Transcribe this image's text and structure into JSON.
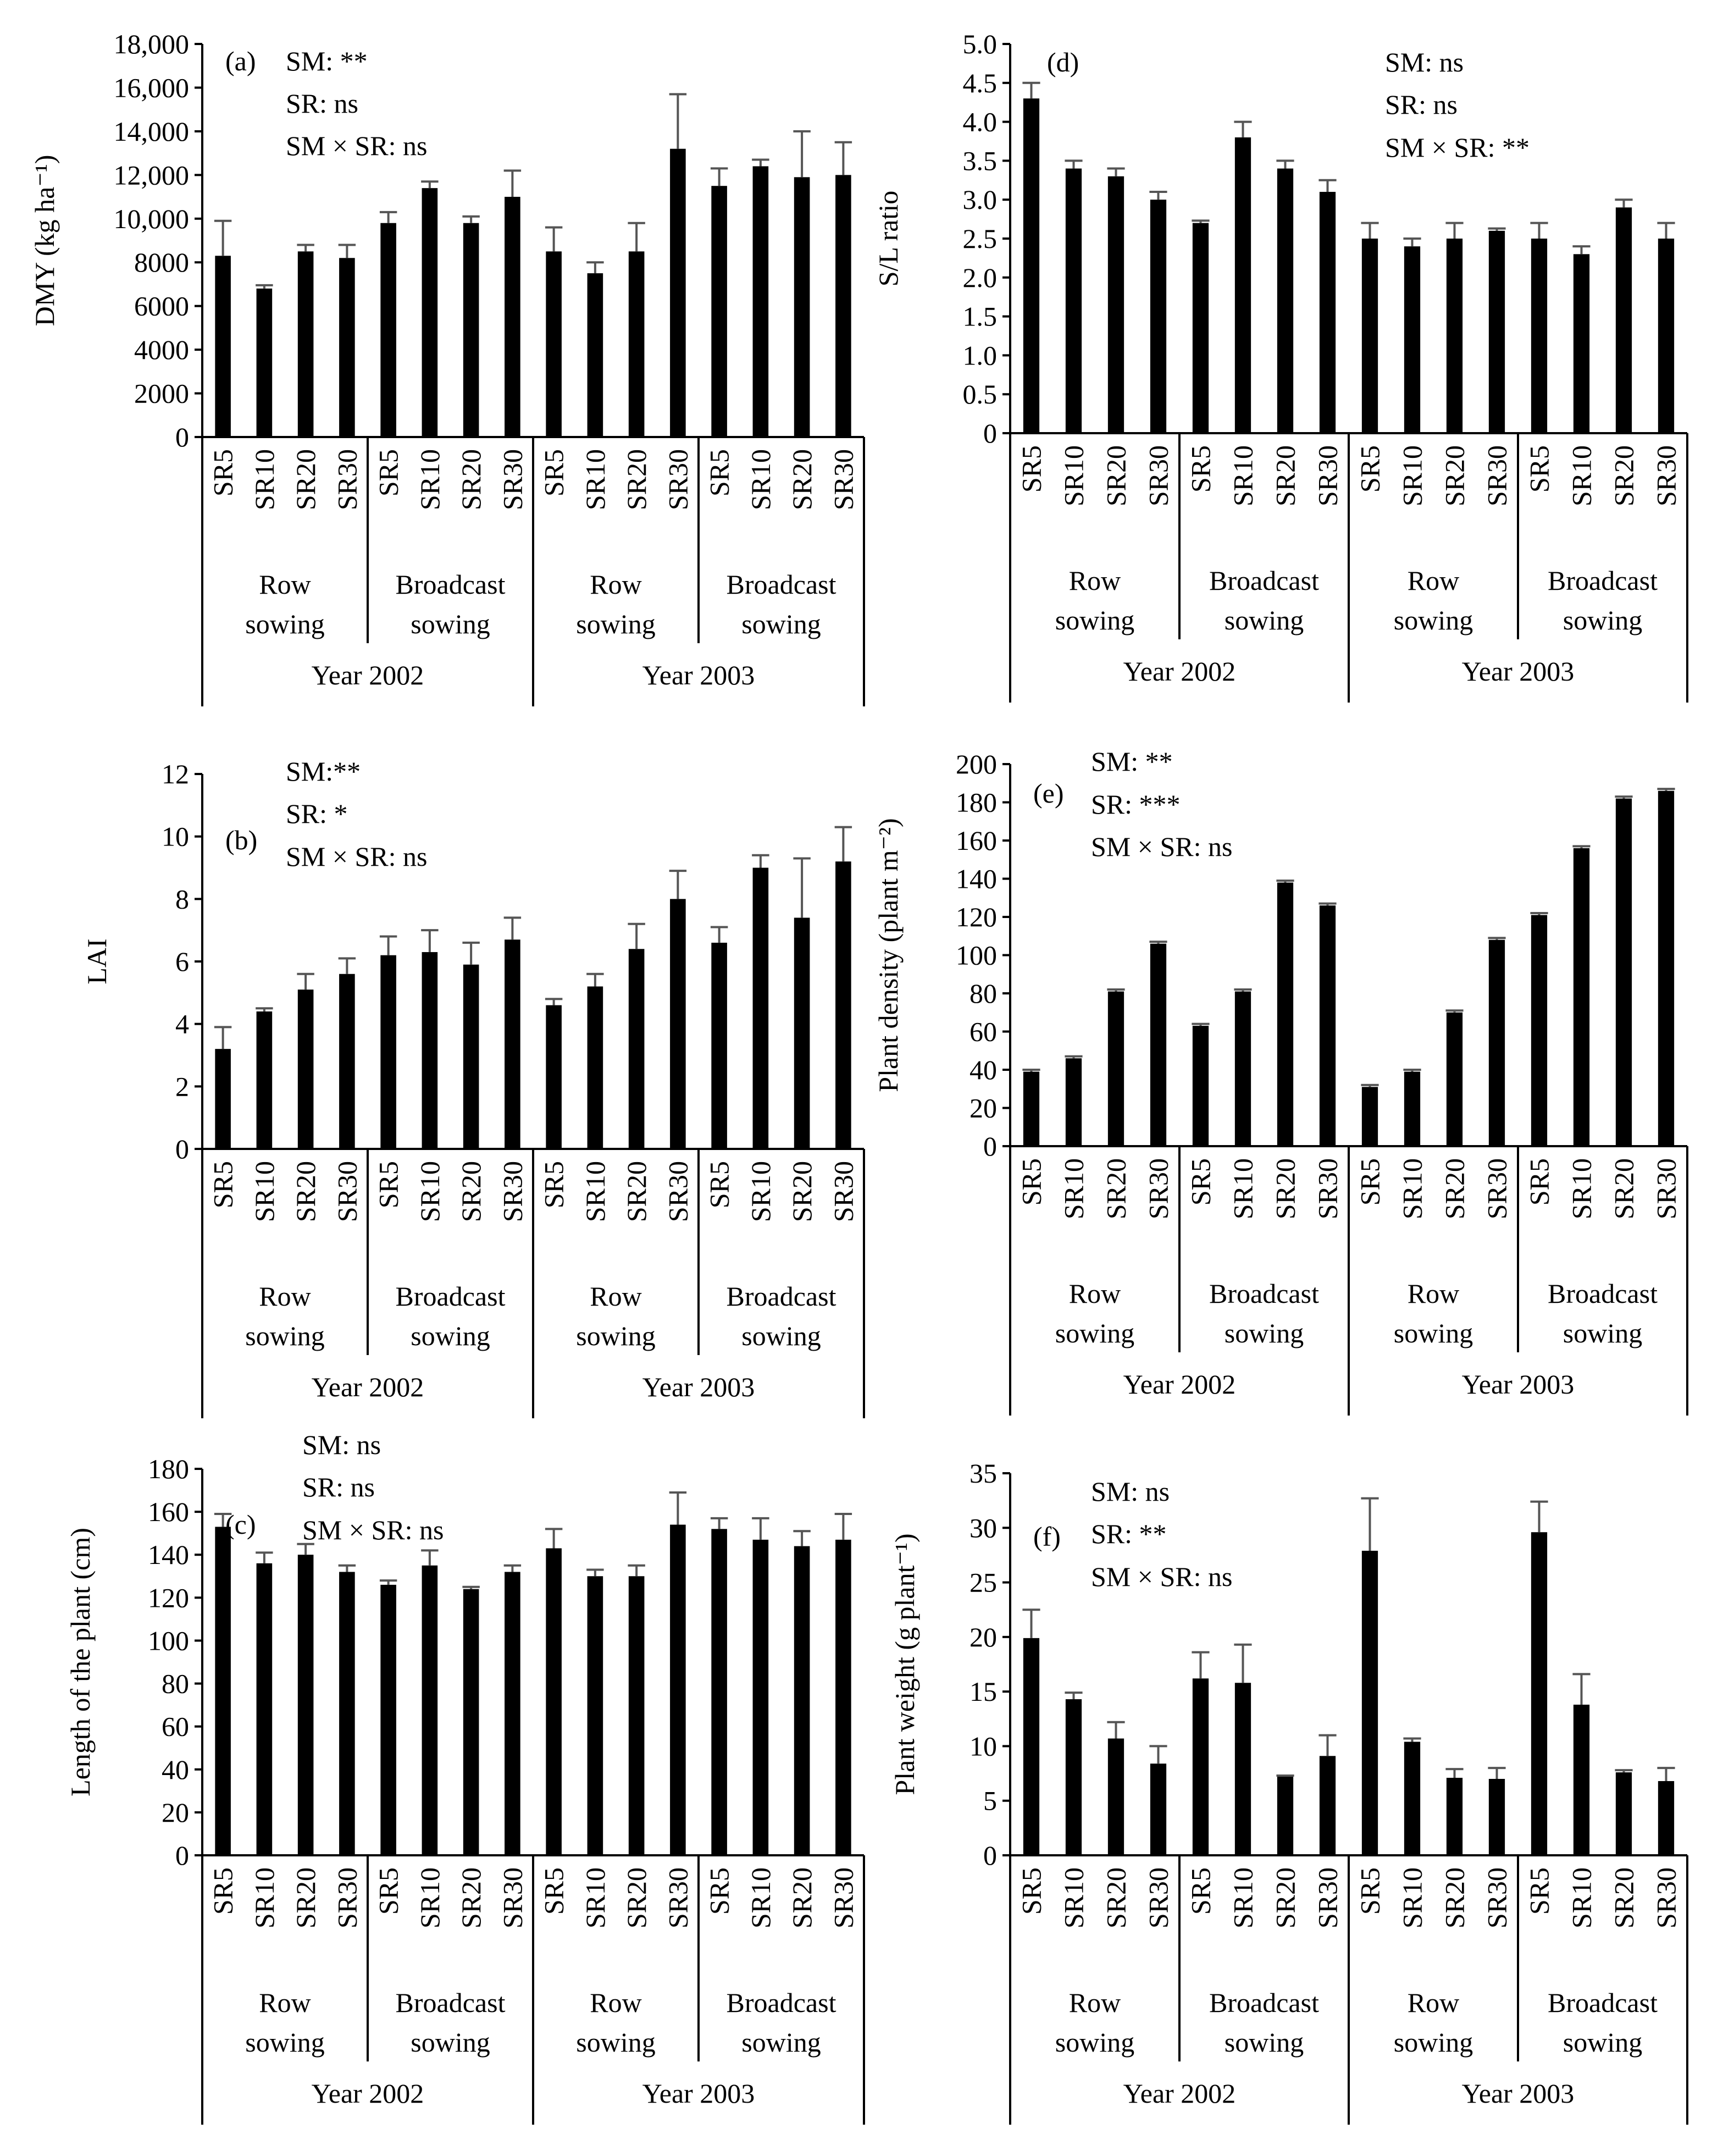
{
  "figure": {
    "group_labels": {
      "sowing_methods": [
        [
          "Row",
          "sowing"
        ],
        [
          "Broadcast",
          "sowing"
        ],
        [
          "Row",
          "sowing"
        ],
        [
          "Broadcast",
          "sowing"
        ]
      ],
      "years": [
        "Year 2002",
        "Year 2003"
      ]
    }
  },
  "chart_data": [
    {
      "panel": "(a)",
      "type": "bar",
      "ylabel": "DMY (kg ha⁻¹)",
      "ylim": [
        0,
        18000
      ],
      "yticks": [
        0,
        2000,
        4000,
        6000,
        8000,
        10000,
        12000,
        14000,
        16000,
        18000
      ],
      "ytick_labels": [
        "0",
        "2000",
        "4000",
        "6000",
        "8000",
        "10,000",
        "12,000",
        "14,000",
        "16,000",
        "18,000"
      ],
      "categories": [
        "SR5",
        "SR10",
        "SR20",
        "SR30",
        "SR5",
        "SR10",
        "SR20",
        "SR30",
        "SR5",
        "SR10",
        "SR20",
        "SR30",
        "SR5",
        "SR10",
        "SR20",
        "SR30"
      ],
      "values": [
        8300,
        6800,
        8500,
        8200,
        9800,
        11400,
        9800,
        11000,
        8500,
        7500,
        8500,
        13200,
        11500,
        12400,
        11900,
        12000
      ],
      "errors": [
        1600,
        150,
        300,
        600,
        500,
        300,
        300,
        1200,
        1100,
        500,
        1300,
        2500,
        800,
        300,
        2100,
        1500
      ],
      "stats": [
        "SM: **",
        "SR: ns",
        "SM × SR: ns"
      ]
    },
    {
      "panel": "(b)",
      "type": "bar",
      "ylabel": "LAI",
      "ylim": [
        0,
        12
      ],
      "yticks": [
        0,
        2,
        4,
        6,
        8,
        10,
        12
      ],
      "ytick_labels": [
        "0",
        "2",
        "4",
        "6",
        "8",
        "10",
        "12"
      ],
      "categories": [
        "SR5",
        "SR10",
        "SR20",
        "SR30",
        "SR5",
        "SR10",
        "SR20",
        "SR30",
        "SR5",
        "SR10",
        "SR20",
        "SR30",
        "SR5",
        "SR10",
        "SR20",
        "SR30"
      ],
      "values": [
        3.2,
        4.4,
        5.1,
        5.6,
        6.2,
        6.3,
        5.9,
        6.7,
        4.6,
        5.2,
        6.4,
        8.0,
        6.6,
        9.0,
        7.4,
        9.2
      ],
      "errors": [
        0.7,
        0.1,
        0.5,
        0.5,
        0.6,
        0.7,
        0.7,
        0.7,
        0.2,
        0.4,
        0.8,
        0.9,
        0.5,
        0.4,
        1.9,
        1.1
      ],
      "stats": [
        "SM:**",
        "SR: *",
        "SM × SR: ns"
      ]
    },
    {
      "panel": "(c)",
      "type": "bar",
      "ylabel": "Length of the plant (cm)",
      "ylim": [
        0,
        180
      ],
      "yticks": [
        0,
        20,
        40,
        60,
        80,
        100,
        120,
        140,
        160,
        180
      ],
      "ytick_labels": [
        "0",
        "20",
        "40",
        "60",
        "80",
        "100",
        "120",
        "140",
        "160",
        "180"
      ],
      "categories": [
        "SR5",
        "SR10",
        "SR20",
        "SR30",
        "SR5",
        "SR10",
        "SR20",
        "SR30",
        "SR5",
        "SR10",
        "SR20",
        "SR30",
        "SR5",
        "SR10",
        "SR20",
        "SR30"
      ],
      "values": [
        153,
        136,
        140,
        132,
        126,
        135,
        124,
        132,
        143,
        130,
        130,
        154,
        152,
        147,
        144,
        147
      ],
      "errors": [
        6,
        5,
        5,
        3,
        2,
        7,
        1,
        3,
        9,
        3,
        5,
        15,
        5,
        10,
        7,
        12
      ],
      "stats": [
        "SM: ns",
        "SR: ns",
        "SM × SR: ns"
      ]
    },
    {
      "panel": "(d)",
      "type": "bar",
      "ylabel": "S/L ratio",
      "ylim": [
        0,
        5.0
      ],
      "yticks": [
        0,
        0.5,
        1.0,
        1.5,
        2.0,
        2.5,
        3.0,
        3.5,
        4.0,
        4.5,
        5.0
      ],
      "ytick_labels": [
        "0",
        "0.5",
        "1.0",
        "1.5",
        "2.0",
        "2.5",
        "3.0",
        "3.5",
        "4.0",
        "4.5",
        "5.0"
      ],
      "categories": [
        "SR5",
        "SR10",
        "SR20",
        "SR30",
        "SR5",
        "SR10",
        "SR20",
        "SR30",
        "SR5",
        "SR10",
        "SR20",
        "SR30",
        "SR5",
        "SR10",
        "SR20",
        "SR30"
      ],
      "values": [
        4.3,
        3.4,
        3.3,
        3.0,
        2.7,
        3.8,
        3.4,
        3.1,
        2.5,
        2.4,
        2.5,
        2.6,
        2.5,
        2.3,
        2.9,
        2.5
      ],
      "errors": [
        0.2,
        0.1,
        0.1,
        0.1,
        0.03,
        0.2,
        0.1,
        0.15,
        0.2,
        0.1,
        0.2,
        0.03,
        0.2,
        0.1,
        0.1,
        0.2
      ],
      "stats": [
        "SM: ns",
        "SR: ns",
        "SM × SR: **"
      ]
    },
    {
      "panel": "(e)",
      "type": "bar",
      "ylabel": "Plant density (plant m⁻²)",
      "ylim": [
        0,
        200
      ],
      "yticks": [
        0,
        20,
        40,
        60,
        80,
        100,
        120,
        140,
        160,
        180,
        200
      ],
      "ytick_labels": [
        "0",
        "20",
        "40",
        "60",
        "80",
        "100",
        "120",
        "140",
        "160",
        "180",
        "200"
      ],
      "categories": [
        "SR5",
        "SR10",
        "SR20",
        "SR30",
        "SR5",
        "SR10",
        "SR20",
        "SR30",
        "SR5",
        "SR10",
        "SR20",
        "SR30",
        "SR5",
        "SR10",
        "SR20",
        "SR30"
      ],
      "values": [
        39,
        46,
        81,
        106,
        63,
        81,
        138,
        126,
        31,
        39,
        70,
        108,
        121,
        156,
        182,
        186
      ],
      "errors": [
        1,
        1,
        1,
        1,
        1,
        1,
        1,
        1,
        1,
        1,
        1,
        1,
        1,
        1,
        1,
        1
      ],
      "stats": [
        "SM: **",
        "SR: ***",
        "SM × SR: ns"
      ]
    },
    {
      "panel": "(f)",
      "type": "bar",
      "ylabel": "Plant weight (g plant⁻¹)",
      "ylim": [
        0,
        35
      ],
      "yticks": [
        0,
        5,
        10,
        15,
        20,
        25,
        30,
        35
      ],
      "ytick_labels": [
        "0",
        "5",
        "10",
        "15",
        "20",
        "25",
        "30",
        "35"
      ],
      "categories": [
        "SR5",
        "SR10",
        "SR20",
        "SR30",
        "SR5",
        "SR10",
        "SR20",
        "SR30",
        "SR5",
        "SR10",
        "SR20",
        "SR30",
        "SR5",
        "SR10",
        "SR20",
        "SR30"
      ],
      "values": [
        19.9,
        14.3,
        10.7,
        8.4,
        16.2,
        15.8,
        7.2,
        9.1,
        27.9,
        10.4,
        7.1,
        7.0,
        29.6,
        13.8,
        7.6,
        6.8
      ],
      "errors": [
        2.6,
        0.6,
        1.5,
        1.6,
        2.4,
        3.5,
        0.1,
        1.9,
        4.8,
        0.3,
        0.8,
        1.0,
        2.8,
        2.8,
        0.2,
        1.2
      ],
      "stats": [
        "SM: ns",
        "SR: **",
        "SM × SR: ns"
      ]
    }
  ]
}
